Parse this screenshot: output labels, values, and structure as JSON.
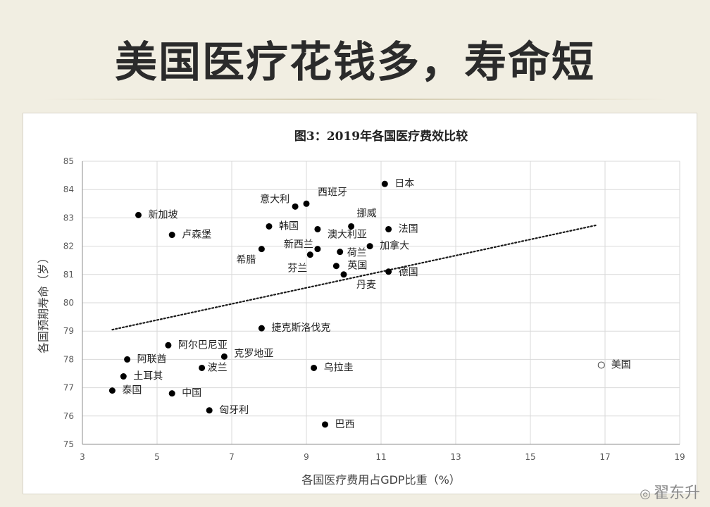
{
  "slide": {
    "title": "美国医疗花钱多，寿命短"
  },
  "watermark": {
    "text": "翟东升"
  },
  "chart_data": {
    "type": "scatter",
    "title": "图3：2019年各国医疗费效比较",
    "xlabel": "各国医疗费用占GDP比重（%）",
    "ylabel": "各国预期寿命（岁）",
    "xlim": [
      3,
      19
    ],
    "ylim": [
      75,
      85
    ],
    "xticks": [
      3,
      5,
      7,
      9,
      11,
      13,
      15,
      17,
      19
    ],
    "yticks": [
      75,
      76,
      77,
      78,
      79,
      80,
      81,
      82,
      83,
      84,
      85
    ],
    "grid": true,
    "points": [
      {
        "name": "日本",
        "x": 11.1,
        "y": 84.2
      },
      {
        "name": "西班牙",
        "x": 9.0,
        "y": 83.5
      },
      {
        "name": "意大利",
        "x": 8.7,
        "y": 83.4
      },
      {
        "name": "新加坡",
        "x": 4.5,
        "y": 83.1
      },
      {
        "name": "挪威",
        "x": 10.2,
        "y": 82.7
      },
      {
        "name": "韩国",
        "x": 8.0,
        "y": 82.7
      },
      {
        "name": "澳大利亚",
        "x": 9.3,
        "y": 82.6
      },
      {
        "name": "法国",
        "x": 11.2,
        "y": 82.6
      },
      {
        "name": "卢森堡",
        "x": 5.4,
        "y": 82.4
      },
      {
        "name": "新西兰",
        "x": 9.3,
        "y": 81.9
      },
      {
        "name": "希腊",
        "x": 7.8,
        "y": 81.9
      },
      {
        "name": "加拿大",
        "x": 10.7,
        "y": 82.0
      },
      {
        "name": "荷兰",
        "x": 9.9,
        "y": 81.8
      },
      {
        "name": "芬兰",
        "x": 9.1,
        "y": 81.7
      },
      {
        "name": "英国",
        "x": 9.8,
        "y": 81.3
      },
      {
        "name": "丹麦",
        "x": 10.0,
        "y": 81.0
      },
      {
        "name": "德国",
        "x": 11.2,
        "y": 81.1
      },
      {
        "name": "捷克斯洛伐克",
        "x": 7.8,
        "y": 79.1
      },
      {
        "name": "阿尔巴尼亚",
        "x": 5.3,
        "y": 78.5
      },
      {
        "name": "阿联酋",
        "x": 4.2,
        "y": 78.0
      },
      {
        "name": "克罗地亚",
        "x": 6.8,
        "y": 78.1
      },
      {
        "name": "波兰",
        "x": 6.2,
        "y": 77.7
      },
      {
        "name": "乌拉圭",
        "x": 9.2,
        "y": 77.7
      },
      {
        "name": "土耳其",
        "x": 4.1,
        "y": 77.4
      },
      {
        "name": "泰国",
        "x": 3.8,
        "y": 76.9
      },
      {
        "name": "中国",
        "x": 5.4,
        "y": 76.8
      },
      {
        "name": "匈牙利",
        "x": 6.4,
        "y": 76.2
      },
      {
        "name": "巴西",
        "x": 9.5,
        "y": 75.7
      },
      {
        "name": "美国",
        "x": 16.9,
        "y": 77.8,
        "hollow": true
      }
    ],
    "trendline": {
      "style": "dotted",
      "x": [
        3.8,
        16.8
      ],
      "y": [
        79.05,
        82.75
      ]
    }
  }
}
